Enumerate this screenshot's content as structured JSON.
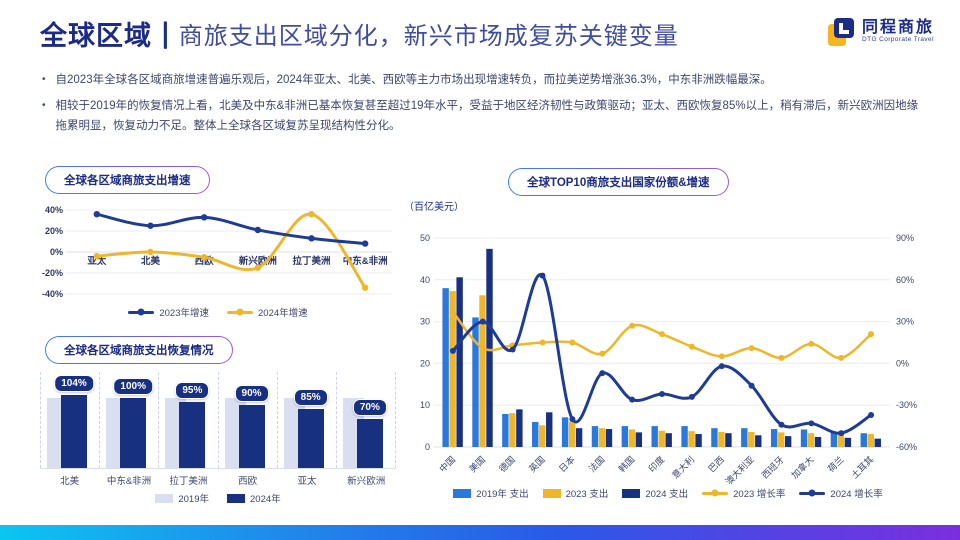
{
  "header": {
    "section": "全球区域",
    "divider": "|",
    "title": "商旅支出区域分化，新兴市场成复苏关键变量",
    "logo": {
      "name": "同程商旅",
      "sub": "DTG Corporate Travel"
    }
  },
  "bullets": [
    "自2023年全球各区域商旅增速普遍乐观后，2024年亚太、北美、西欧等主力市场出现增速转负，而拉美逆势增涨36.3%，中东非洲跌幅最深。",
    "相较于2019年的恢复情况上看，北美及中东&非洲已基本恢复甚至超过19年水平，受益于地区经济韧性与政策驱动；亚太、西欧恢复85%以上，稍有滞后，新兴欧洲因地缘拖累明显，恢复动力不足。整体上全球各区域复苏呈现结构性分化。"
  ],
  "colors": {
    "navy": "#17307f",
    "navy_line": "#1e3c96",
    "blue": "#2879db",
    "yellow": "#f0b62a",
    "lavender": "#d9def0",
    "grid": "#ececf4",
    "text": "#3d466e",
    "title_navy": "#1c2c86",
    "gradient_bar": [
      "#0cc5f2",
      "#2a59e8",
      "#7b2ee0"
    ]
  },
  "chart_data": [
    {
      "id": "region_growth",
      "type": "line",
      "title": "全球各区域商旅支出增速",
      "categories": [
        "亚太",
        "北美",
        "西欧",
        "新兴欧洲",
        "拉丁美洲",
        "中东&非洲"
      ],
      "series": [
        {
          "name": "2023年增速",
          "color": "#1e3c96",
          "values": [
            36,
            25,
            33,
            21,
            13,
            8
          ]
        },
        {
          "name": "2024年增速",
          "color": "#f0b62a",
          "values": [
            -4,
            0,
            -5,
            -15,
            36,
            -34
          ]
        }
      ],
      "yticks": [
        40,
        20,
        0,
        -20,
        -40
      ],
      "ylim": [
        -44,
        44
      ],
      "ytick_suffix": "%",
      "grid": true,
      "legend_position": "bottom"
    },
    {
      "id": "region_recovery",
      "type": "bar",
      "title": "全球各区域商旅支出恢复情况",
      "categories": [
        "北美",
        "中东&非洲",
        "拉丁美洲",
        "西欧",
        "亚太",
        "新兴欧洲"
      ],
      "series": [
        {
          "name": "2019年",
          "color": "#d9def0",
          "values": [
            100,
            100,
            100,
            100,
            100,
            100
          ]
        },
        {
          "name": "2024年",
          "color": "#17307f",
          "values": [
            104,
            100,
            95,
            90,
            85,
            70
          ]
        }
      ],
      "labels": [
        "104%",
        "100%",
        "95%",
        "90%",
        "85%",
        "70%"
      ],
      "legend_position": "bottom"
    },
    {
      "id": "top10_countries",
      "type": "combo",
      "title": "全球TOP10商旅支出国家份额&增速",
      "unit": "（百亿美元）",
      "categories": [
        "中国",
        "美国",
        "德国",
        "英国",
        "日本",
        "法国",
        "韩国",
        "印度",
        "意大利",
        "巴西",
        "澳大利亚",
        "西班牙",
        "加拿大",
        "荷兰",
        "土耳其"
      ],
      "bar_series": [
        {
          "name": "2019年 支出",
          "color": "#2879db",
          "values": [
            38,
            31,
            7.9,
            6,
            7.1,
            5,
            5,
            5,
            5,
            4.5,
            4.5,
            4.3,
            4.2,
            3.5,
            3.3
          ]
        },
        {
          "name": "2023 支出",
          "color": "#f0b62a",
          "values": [
            37.3,
            36.3,
            8.1,
            5.2,
            6,
            4.5,
            4.2,
            3.9,
            3.8,
            3.6,
            3.6,
            3.5,
            3.3,
            3.3,
            3.1
          ]
        },
        {
          "name": "2024 支出",
          "color": "#17307f",
          "values": [
            40.6,
            47.4,
            9,
            8.3,
            4.5,
            4.3,
            3.5,
            3.3,
            3.1,
            3.3,
            2.8,
            2.6,
            2.4,
            2.2,
            2
          ]
        }
      ],
      "line_series": [
        {
          "name": "2023 增长率",
          "color": "#f0b62a",
          "values": [
            37,
            11,
            13,
            15,
            15,
            7,
            27,
            21,
            12,
            5,
            11,
            4,
            14,
            4,
            21
          ]
        },
        {
          "name": "2024 增长率",
          "color": "#1e3c96",
          "values": [
            9,
            30,
            10,
            63,
            -40,
            -7,
            -26,
            -22,
            -24,
            -2,
            -16,
            -44,
            -43,
            -50,
            -37
          ]
        }
      ],
      "left_axis": {
        "ticks": [
          0,
          10,
          20,
          30,
          40,
          50
        ],
        "min": 0,
        "max": 50
      },
      "right_axis": {
        "ticks": [
          90,
          60,
          30,
          0,
          -30,
          -60
        ],
        "suffix": "%",
        "min": -60,
        "max": 90
      },
      "grid": true,
      "legend_position": "bottom"
    }
  ]
}
